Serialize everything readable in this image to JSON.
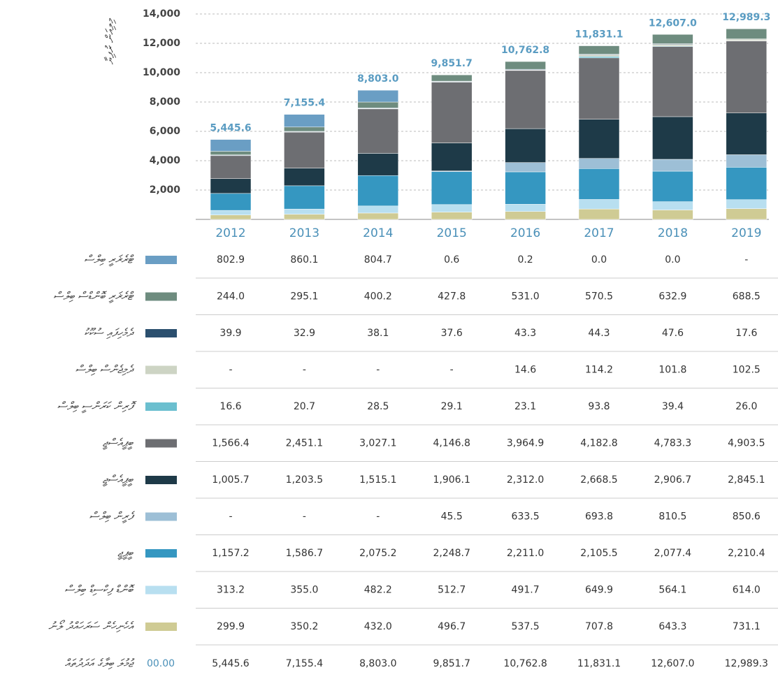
{
  "chart_data": {
    "type": "stacked_bar",
    "y_label": "މިލިއަން ރުފިޔާ",
    "categories": [
      "2012",
      "2013",
      "2014",
      "2015",
      "2016",
      "2017",
      "2018",
      "2019"
    ],
    "ylim": [
      0,
      14000
    ],
    "yticks": [
      {
        "value": 2000,
        "label": "2,000"
      },
      {
        "value": 4000,
        "label": "4,000"
      },
      {
        "value": 6000,
        "label": "6,000"
      },
      {
        "value": 8000,
        "label": "8,000"
      },
      {
        "value": 10000,
        "label": "10,000"
      },
      {
        "value": 12000,
        "label": "12,000"
      },
      {
        "value": 14000,
        "label": "14,000"
      }
    ],
    "grid": true,
    "series": [
      {
        "name": "ޓްރެޜަރީ ބިލްސް",
        "color": "#6a9ec4",
        "values": [
          802.9,
          860.1,
          804.7,
          0.6,
          0.2,
          0.0,
          0.0,
          null
        ],
        "value_labels": [
          "802.9",
          "860.1",
          "804.7",
          "0.6",
          "0.2",
          "0.0",
          "0.0",
          "-"
        ]
      },
      {
        "name": "ޓްރެޜަރީ ބޮންޑްސް ބިލްސް",
        "color": "#6e8c7f",
        "values": [
          244.0,
          295.1,
          400.2,
          427.8,
          531.0,
          570.5,
          632.9,
          688.5
        ],
        "value_labels": [
          "244.0",
          "295.1",
          "400.2",
          "427.8",
          "531.0",
          "570.5",
          "632.9",
          "688.5"
        ]
      },
      {
        "name": "ދެމެހިފައި ސުކޫކު",
        "color": "#2b4f6e",
        "values": [
          39.9,
          32.9,
          38.1,
          37.6,
          43.3,
          44.3,
          47.6,
          17.6
        ],
        "value_labels": [
          "39.9",
          "32.9",
          "38.1",
          "37.6",
          "43.3",
          "44.3",
          "47.6",
          "17.6"
        ]
      },
      {
        "name": "ދެމިޖެންސް ބިލްސް",
        "color": "#cdd4c4",
        "values": [
          null,
          null,
          null,
          null,
          14.6,
          114.2,
          101.8,
          102.5
        ],
        "value_labels": [
          "-",
          "-",
          "-",
          "-",
          "14.6",
          "114.2",
          "101.8",
          "102.5"
        ]
      },
      {
        "name": "ފޮރިން ކަރަންސީ ބިލްސް",
        "color": "#6bbfcf",
        "values": [
          16.6,
          20.7,
          28.5,
          29.1,
          23.1,
          93.8,
          39.4,
          26.0
        ],
        "value_labels": [
          "16.6",
          "20.7",
          "28.5",
          "29.1",
          "23.1",
          "93.8",
          "39.4",
          "26.0"
        ]
      },
      {
        "name": "ބީޕީއެސްޖީ",
        "color": "#6d6e72",
        "values": [
          1566.4,
          2451.1,
          3027.1,
          4146.8,
          3964.9,
          4182.8,
          4783.3,
          4903.5
        ],
        "value_labels": [
          "1,566.4",
          "2,451.1",
          "3,027.1",
          "4,146.8",
          "3,964.9",
          "4,182.8",
          "4,783.3",
          "4,903.5"
        ]
      },
      {
        "name": "ބީޕީއެސްޖީ ",
        "color": "#1e3a48",
        "values": [
          1005.7,
          1203.5,
          1515.1,
          1906.1,
          2312.0,
          2668.5,
          2906.7,
          2845.1
        ],
        "value_labels": [
          "1,005.7",
          "1,203.5",
          "1,515.1",
          "1,906.1",
          "2,312.0",
          "2,668.5",
          "2,906.7",
          "2,845.1"
        ]
      },
      {
        "name": "ފެރީން ބިލްސް",
        "color": "#9dbfd6",
        "values": [
          null,
          null,
          null,
          45.5,
          633.5,
          693.8,
          810.5,
          850.6
        ],
        "value_labels": [
          "-",
          "-",
          "-",
          "45.5",
          "633.5",
          "693.8",
          "810.5",
          "850.6"
        ]
      },
      {
        "name": "ބީޕީޖީ",
        "color": "#3597c1",
        "values": [
          1157.2,
          1586.7,
          2075.2,
          2248.7,
          2211.0,
          2105.5,
          2077.4,
          2210.4
        ],
        "value_labels": [
          "1,157.2",
          "1,586.7",
          "2,075.2",
          "2,248.7",
          "2,211.0",
          "2,105.5",
          "2,077.4",
          "2,210.4"
        ]
      },
      {
        "name": "ބޮންޑް ފިކްސިޑް ބިލްސް",
        "color": "#b8dff0",
        "values": [
          313.2,
          355.0,
          482.2,
          512.7,
          491.7,
          649.9,
          564.1,
          614.0
        ],
        "value_labels": [
          "313.2",
          "355.0",
          "482.2",
          "512.7",
          "491.7",
          "649.9",
          "564.1",
          "614.0"
        ]
      },
      {
        "name": "އެހެނިހެން ސަރަހައްދު ލޯނު",
        "color": "#cfcb94",
        "values": [
          299.9,
          350.2,
          432.0,
          496.7,
          537.5,
          707.8,
          643.3,
          731.1
        ],
        "value_labels": [
          "299.9",
          "350.2",
          "432.0",
          "496.7",
          "537.5",
          "707.8",
          "643.3",
          "731.1"
        ]
      }
    ],
    "total": {
      "name": "ޖުމުލަ ބިލާގެ އަދަދުތައް",
      "label": "00.00",
      "values": [
        5445.6,
        7155.4,
        8803.0,
        9851.7,
        10762.8,
        11831.1,
        12607.0,
        12989.3
      ],
      "value_labels": [
        "5,445.6",
        "7,155.4",
        "8,803.0",
        "9,851.7",
        "10,762.8",
        "11,831.1",
        "12,607.0",
        "12,989.3"
      ]
    }
  }
}
